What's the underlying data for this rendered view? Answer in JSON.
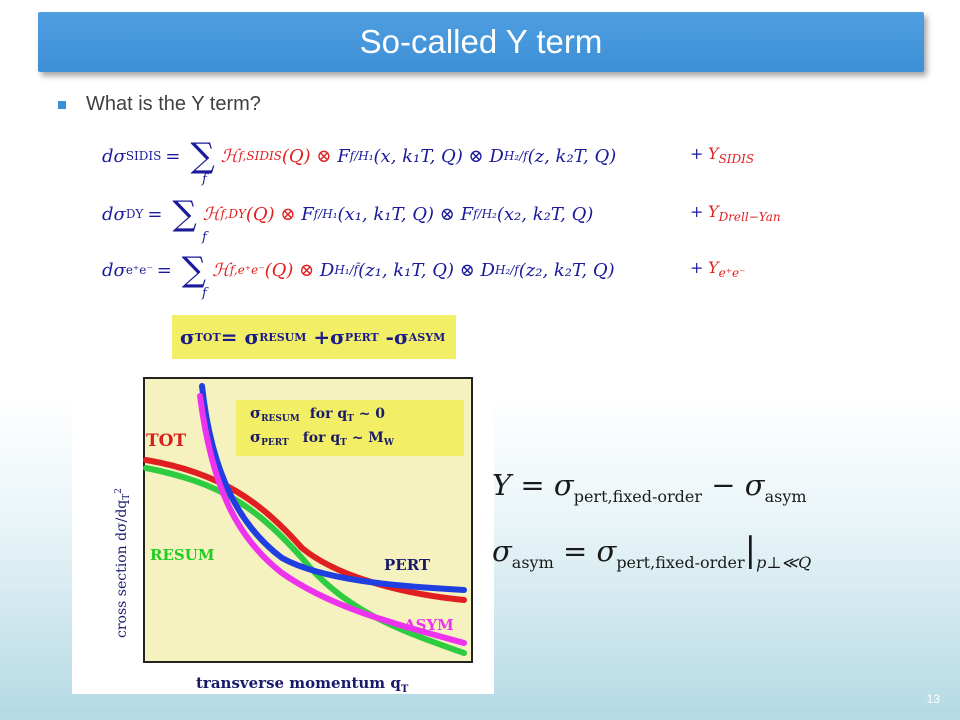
{
  "slide": {
    "title": "So-called Y term",
    "bullet": "What is the Y term?",
    "page_number": "13"
  },
  "equations": {
    "row1": {
      "lhs": "dσ",
      "lhs_sub": "SIDIS",
      "h": "ℋ",
      "h_sub": "f,SIDIS",
      "h_arg": "(Q) ⊗ ",
      "f1": "F",
      "f1_sub": "f/H₁",
      "f1_arg": "(x, k₁T, Q) ⊗ ",
      "f2": "D",
      "f2_sub": "H₂/f",
      "f2_arg": "(z, k₂T, Q)",
      "plus": "+",
      "y": "Y",
      "y_sub": "SIDIS"
    },
    "row2": {
      "lhs": "dσ",
      "lhs_sub": "DY",
      "h": "ℋ",
      "h_sub": "f,DY",
      "h_arg": "(Q) ⊗ ",
      "f1": "F",
      "f1_sub": "f/H₁",
      "f1_arg": "(x₁, k₁T, Q) ⊗ ",
      "f2": "F",
      "f2_sub": "f/H₂",
      "f2_arg": "(x₂, k₂T, Q)",
      "plus": "+",
      "y": "Y",
      "y_sub": "Drell−Yan"
    },
    "row3": {
      "lhs": "dσ",
      "lhs_sub": "e⁺e⁻",
      "h": "ℋ",
      "h_sub": "f,e⁺e⁻",
      "h_arg": "(Q) ⊗ ",
      "f1": "D",
      "f1_sub": "H₁/f̄",
      "f1_arg": "(z₁, k₁T, Q) ⊗ ",
      "f2": "D",
      "f2_sub": "H₂/f",
      "f2_arg": "(z₂, k₂T, Q)",
      "plus": "+",
      "y": "Y",
      "y_sub": "e⁺e⁻"
    },
    "sum_symbol": "∑",
    "sum_index": "f",
    "equals": "="
  },
  "figure": {
    "formula": {
      "s1": "σ",
      "s1_sub": "TOT",
      "eq": "= ",
      "s2": "σ",
      "s2_sub": "RESUM",
      "plus": " +",
      "s3": "σ",
      "s3_sub": "PERT",
      "minus": " -",
      "s4": "σ",
      "s4_sub": "ASYM"
    },
    "legend": {
      "l1_sym": "σ",
      "l1_sub": "RESUM",
      "l1_text": "for q",
      "l1_qsub": "T",
      "l1_cond": " ~ 0",
      "l2_sym": "σ",
      "l2_sub": "PERT",
      "l2_text": "for q",
      "l2_qsub": "T",
      "l2_cond": " ~ M",
      "l2_msub": "W"
    },
    "labels": {
      "tot": "TOT",
      "resum": "RESUM",
      "pert": "PERT",
      "asym": "ASYM"
    },
    "xlabel": "transverse momentum q",
    "xlabel_sub": "T",
    "ylabel": "cross section dσ/dq",
    "ylabel_sub": "T",
    "ylabel_sup": "2",
    "colors": {
      "tot": "#e02020",
      "resum": "#2ecc40",
      "pert": "#1f3fe0",
      "asym": "#ee33ee",
      "label": "#d81f1f",
      "label_green": "#22cc22",
      "label_blue": "#1a1a6a",
      "plot_bg": "#f6f2c0",
      "legend_bg": "#f2ee66"
    }
  },
  "math": {
    "line1": {
      "y": "Y",
      "eq": " = ",
      "sigma1": "σ",
      "sub1": "pert,fixed-order",
      "minus": " − ",
      "sigma2": "σ",
      "sub2": "asym"
    },
    "line2": {
      "sigma1": "σ",
      "sub1": "asym",
      "eq": " = ",
      "sigma2": "σ",
      "sub2": "pert,fixed-order",
      "bar": "|",
      "cond": "p⊥≪Q"
    }
  }
}
